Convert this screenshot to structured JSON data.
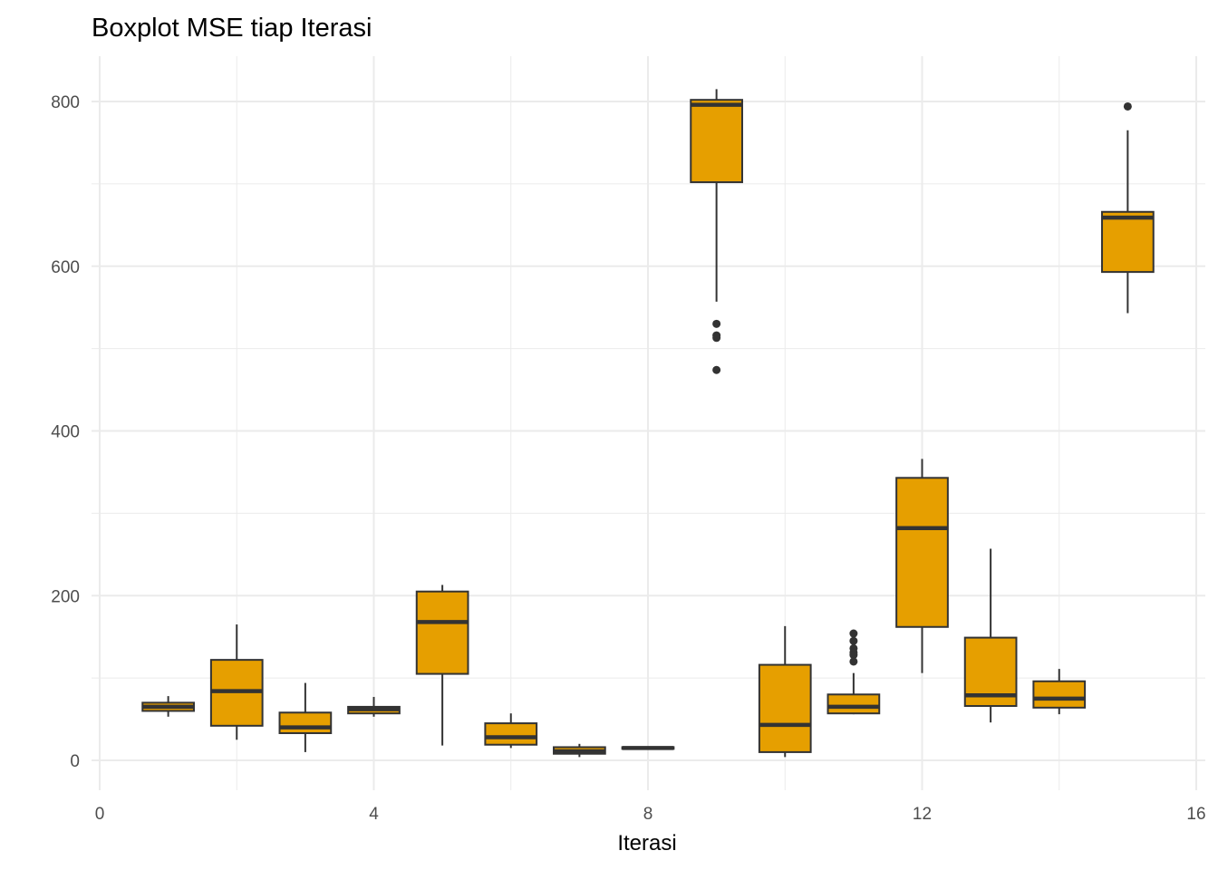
{
  "chart_data": {
    "type": "boxplot",
    "title": "Boxplot MSE tiap Iterasi",
    "xlabel": "Iterasi",
    "ylabel": "",
    "xlim": [
      0,
      16
    ],
    "ylim": [
      -38,
      855
    ],
    "x_ticks": [
      0,
      4,
      8,
      12,
      16
    ],
    "x_tick_labels": [
      "0",
      "4",
      "8",
      "12",
      "16"
    ],
    "y_ticks": [
      0,
      200,
      400,
      600,
      800
    ],
    "y_tick_labels": [
      "0",
      "200",
      "400",
      "600",
      "800"
    ],
    "grid": true,
    "legend": "none",
    "fill_color": "#E69F00",
    "line_color": "#333333",
    "grid_color": "#ebebeb",
    "boxes": [
      {
        "x": 1,
        "whisker_low": 53,
        "q1": 60,
        "median": 65,
        "q3": 70,
        "whisker_high": 78,
        "outliers": []
      },
      {
        "x": 2,
        "whisker_low": 25,
        "q1": 42,
        "median": 84,
        "q3": 122,
        "whisker_high": 165,
        "outliers": []
      },
      {
        "x": 3,
        "whisker_low": 10,
        "q1": 33,
        "median": 40,
        "q3": 58,
        "whisker_high": 94,
        "outliers": []
      },
      {
        "x": 4,
        "whisker_low": 53,
        "q1": 57,
        "median": 62,
        "q3": 65,
        "whisker_high": 77,
        "outliers": []
      },
      {
        "x": 5,
        "whisker_low": 18,
        "q1": 105,
        "median": 168,
        "q3": 205,
        "whisker_high": 213,
        "outliers": []
      },
      {
        "x": 6,
        "whisker_low": 15,
        "q1": 19,
        "median": 28,
        "q3": 45,
        "whisker_high": 57,
        "outliers": []
      },
      {
        "x": 7,
        "whisker_low": 4,
        "q1": 8,
        "median": 11,
        "q3": 16,
        "whisker_high": 20,
        "outliers": []
      },
      {
        "x": 8,
        "whisker_low": 14,
        "q1": 14,
        "median": 15,
        "q3": 16,
        "whisker_high": 16,
        "outliers": []
      },
      {
        "x": 9,
        "whisker_low": 557,
        "q1": 702,
        "median": 796,
        "q3": 802,
        "whisker_high": 815,
        "outliers": [
          530,
          516,
          513,
          474
        ]
      },
      {
        "x": 10,
        "whisker_low": 4,
        "q1": 10,
        "median": 43,
        "q3": 116,
        "whisker_high": 163,
        "outliers": []
      },
      {
        "x": 11,
        "whisker_low": 56,
        "q1": 57,
        "median": 65,
        "q3": 80,
        "whisker_high": 106,
        "outliers": [
          154,
          145,
          136,
          131,
          128,
          120
        ]
      },
      {
        "x": 12,
        "whisker_low": 106,
        "q1": 162,
        "median": 282,
        "q3": 343,
        "whisker_high": 366,
        "outliers": []
      },
      {
        "x": 13,
        "whisker_low": 46,
        "q1": 66,
        "median": 79,
        "q3": 149,
        "whisker_high": 257,
        "outliers": []
      },
      {
        "x": 14,
        "whisker_low": 56,
        "q1": 64,
        "median": 75,
        "q3": 96,
        "whisker_high": 111,
        "outliers": []
      },
      {
        "x": 15,
        "whisker_low": 543,
        "q1": 593,
        "median": 659,
        "q3": 666,
        "whisker_high": 765,
        "outliers": [
          794
        ]
      }
    ]
  }
}
